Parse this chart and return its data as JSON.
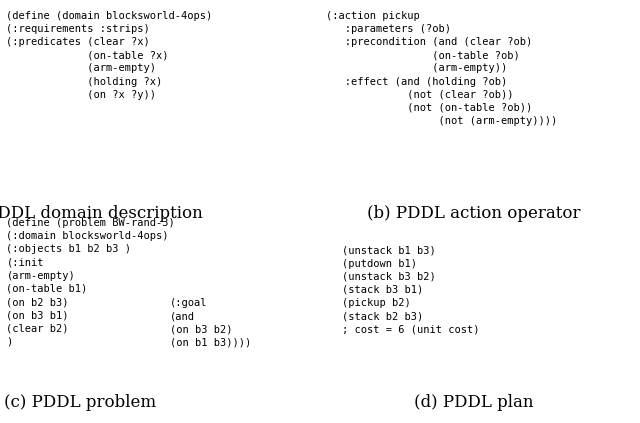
{
  "background_color": "#ffffff",
  "fig_width": 6.4,
  "fig_height": 4.23,
  "text_color": "#000000",
  "mono_fontsize": 7.5,
  "label_fontsize": 12.0,
  "panel_a_code": "(define (domain blocksworld-4ops)\n(:requirements :strips)\n(:predicates (clear ?x)\n             (on-table ?x)\n             (arm-empty)\n             (holding ?x)\n             (on ?x ?y))",
  "panel_a_label": "(a) PDDL domain description",
  "panel_b_code": "(:action pickup\n   :parameters (?ob)\n   :precondition (and (clear ?ob)\n                 (on-table ?ob)\n                 (arm-empty))\n   :effect (and (holding ?ob)\n             (not (clear ?ob))\n             (not (on-table ?ob))\n                  (not (arm-empty))))",
  "panel_b_label": "(b) PDDL action operator",
  "panel_c_code_left": "(define (problem BW-rand-3)\n(:domain blocksworld-4ops)\n(:objects b1 b2 b3 )\n(:init\n(arm-empty)\n(on-table b1)\n(on b2 b3)\n(on b3 b1)\n(clear b2)\n)",
  "panel_c_code_right": "(:goal\n(and\n(on b3 b2)\n(on b1 b3))))",
  "panel_c_label": "(c) PDDL problem",
  "panel_d_code": "(unstack b1 b3)\n(putdown b1)\n(unstack b3 b2)\n(stack b3 b1)\n(pickup b2)\n(stack b2 b3)\n; cost = 6 (unit cost)",
  "panel_d_label": "(d) PDDL plan"
}
